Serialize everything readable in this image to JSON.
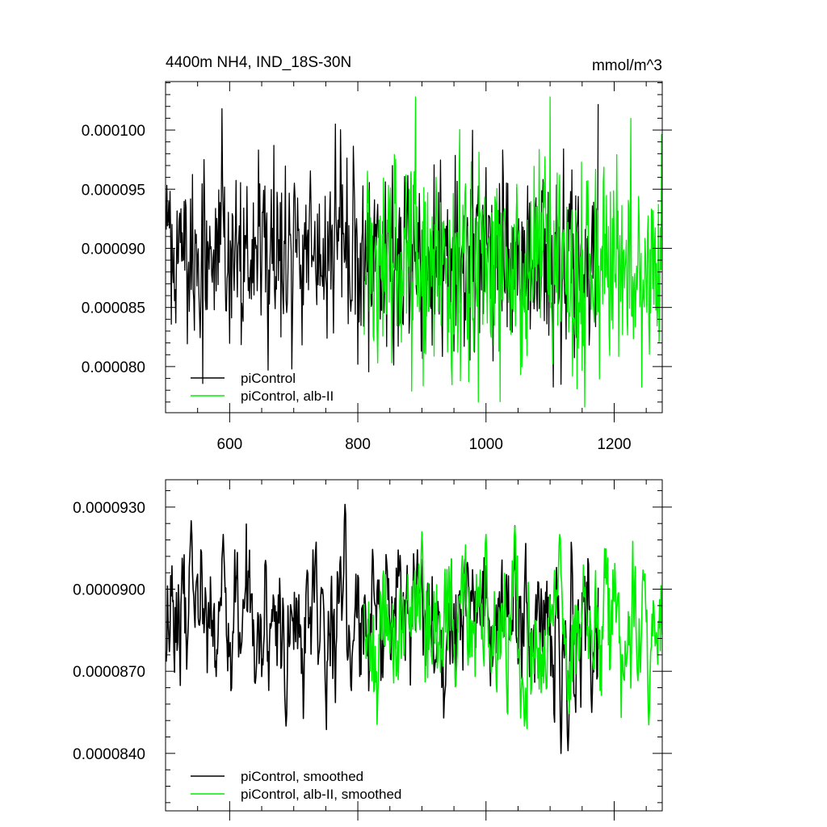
{
  "figure": {
    "background": "#ffffff"
  },
  "chart_data": [
    {
      "type": "line",
      "title": "4400m NH4, IND_18S-30N",
      "units": "mmol/m^3",
      "xlim": [
        500,
        1275
      ],
      "ylim": [
        7.61e-05,
        0.0001041
      ],
      "xticks": [
        600,
        800,
        1000,
        1200
      ],
      "xtick_labels": [
        "600",
        "800",
        "1000",
        "1200"
      ],
      "yticks": [
        8e-05,
        8.5e-05,
        9e-05,
        9.5e-05,
        0.0001
      ],
      "ytick_labels": [
        "0.000080",
        "0.000085",
        "0.000090",
        "0.000095",
        "0.000100"
      ],
      "grid": false,
      "legend_position": "bottom-left",
      "series": [
        {
          "name": "piControl",
          "color": "#000000",
          "x_start": 501,
          "x_end": 1175,
          "mean": 8.93e-05,
          "amplitude": 3.8e-06,
          "noise": "annual",
          "extremes": [
            [
              560,
              9.75e-05
            ],
            [
              588,
              0.0001018
            ],
            [
              660,
              7.97e-05
            ],
            [
              697,
              7.98e-05
            ],
            [
              765,
              0.0001005
            ],
            [
              800,
              8.02e-05
            ],
            [
              845,
              8.17e-05
            ],
            [
              950,
              8.13e-05
            ],
            [
              1117,
              7.85e-05
            ],
            [
              1175,
              0.0001022
            ]
          ]
        },
        {
          "name": "piControl, alb-II",
          "color": "#00ee00",
          "x_start": 810,
          "x_end": 1275,
          "mean": 8.9e-05,
          "amplitude": 4.5e-06,
          "noise": "annual",
          "extremes": [
            [
              890,
              0.0001028
            ],
            [
              960,
              7.88e-05
            ],
            [
              988,
              7.7e-05
            ],
            [
              1020,
              8.13e-05
            ],
            [
              1100,
              0.0001028
            ],
            [
              1135,
              7.92e-05
            ]
          ]
        }
      ]
    },
    {
      "type": "line",
      "xlim": [
        500,
        1275
      ],
      "ylim": [
        8.19e-05,
        9.4e-05
      ],
      "xticks": [
        600,
        800,
        1000,
        1200
      ],
      "yticks": [
        8.4e-05,
        8.7e-05,
        9e-05,
        9.3e-05
      ],
      "ytick_labels": [
        "0.0000840",
        "0.0000870",
        "0.0000900",
        "0.0000930"
      ],
      "grid": false,
      "legend_position": "bottom-left",
      "series": [
        {
          "name": "piControl, smoothed",
          "color": "#000000",
          "x_start": 501,
          "x_end": 1175,
          "mean": 8.9e-05,
          "amplitude": 1.3e-06,
          "noise": "smoothed",
          "extremes": [
            [
              540,
              9.25e-05
            ],
            [
              590,
              9.2e-05
            ],
            [
              688,
              8.5e-05
            ],
            [
              745,
              9e-05
            ],
            [
              780,
              9.31e-05
            ],
            [
              1117,
              8.4e-05
            ],
            [
              1128,
              8.41e-05
            ],
            [
              1165,
              8.55e-05
            ]
          ]
        },
        {
          "name": "piControl, alb-II, smoothed",
          "color": "#00ee00",
          "x_start": 810,
          "x_end": 1275,
          "mean": 8.85e-05,
          "amplitude": 1.3e-06,
          "noise": "smoothed",
          "extremes": [
            [
              900,
              9.21e-05
            ],
            [
              1000,
              9.2e-05
            ],
            [
              1045,
              9.23e-05
            ],
            [
              1060,
              8.5e-05
            ],
            [
              1115,
              9.2e-05
            ],
            [
              1245,
              9.07e-05
            ]
          ]
        }
      ]
    }
  ]
}
